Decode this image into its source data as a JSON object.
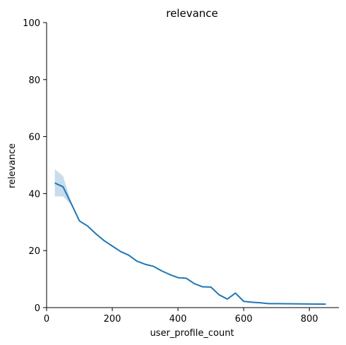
{
  "chart_data": {
    "type": "line",
    "title": "relevance",
    "xlabel": "user_profile_count",
    "ylabel": "relevance",
    "xlim": [
      0,
      890
    ],
    "ylim": [
      0,
      100
    ],
    "xticks": [
      0,
      200,
      400,
      600,
      800
    ],
    "yticks": [
      0,
      20,
      40,
      60,
      80,
      100
    ],
    "grid": false,
    "legend": "none",
    "colors": {
      "line": "#1f77b4",
      "band": "#1f77b4"
    },
    "series": [
      {
        "x": [
          25,
          50,
          75,
          100,
          125,
          150,
          175,
          200,
          225,
          250,
          275,
          300,
          325,
          350,
          375,
          400,
          425,
          450,
          475,
          500,
          525,
          550,
          575,
          600,
          625,
          650,
          675,
          700,
          850
        ],
        "y": [
          43.7,
          42.4,
          36.5,
          30.4,
          28.6,
          25.9,
          23.5,
          21.6,
          19.7,
          18.4,
          16.3,
          15.2,
          14.5,
          12.9,
          11.6,
          10.5,
          10.3,
          8.4,
          7.3,
          7.2,
          4.5,
          3.0,
          5.1,
          2.2,
          1.9,
          1.7,
          1.4,
          1.4,
          1.2
        ],
        "ci_low": [
          39.0,
          39.0,
          36.0,
          30.1,
          28.4,
          25.8,
          23.4,
          21.5,
          19.6,
          18.3,
          16.2,
          15.1,
          14.4,
          12.8,
          11.5,
          10.4,
          10.2,
          8.3,
          7.2,
          7.1,
          4.4,
          2.9,
          5.0,
          2.1,
          1.8,
          1.6,
          1.3,
          1.3,
          1.1
        ],
        "ci_high": [
          48.5,
          46.2,
          37.0,
          30.7,
          28.8,
          26.0,
          23.6,
          21.7,
          19.8,
          18.5,
          16.4,
          15.3,
          14.6,
          13.0,
          11.7,
          10.6,
          10.4,
          8.5,
          7.4,
          7.3,
          4.6,
          3.1,
          5.2,
          2.3,
          2.0,
          1.8,
          1.5,
          1.5,
          1.3
        ]
      }
    ]
  }
}
